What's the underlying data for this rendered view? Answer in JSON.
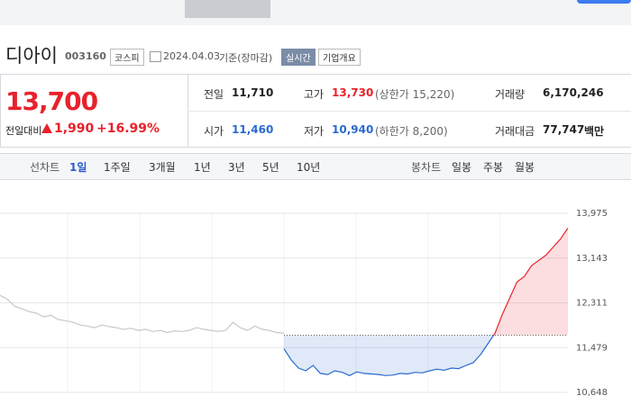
{
  "stock": {
    "name": "디아이",
    "code": "003160",
    "market": "코스피",
    "date": "2024.04.03",
    "basis": "기준(장마감)",
    "realtime": "실시간",
    "overview": "기업개요"
  },
  "price": {
    "current": "13,700",
    "change_label": "전일대비",
    "change": "1,990",
    "rate": "+16.99%"
  },
  "summary": {
    "rows": [
      [
        {
          "label": "전일",
          "value": "11,710"
        },
        {
          "label": "고가",
          "value": "13,730",
          "note": "(상한가 15,220)"
        },
        {
          "label": "거래량",
          "value": "6,170,246"
        }
      ],
      [
        {
          "label": "시가",
          "value": "11,460"
        },
        {
          "label": "저가",
          "value": "10,940",
          "note": "(하한가 8,200)"
        },
        {
          "label": "거래대금",
          "value": "77,747",
          "unit": "백만"
        }
      ]
    ]
  },
  "tabs": {
    "line_label": "선차트",
    "line_tabs": [
      "1일",
      "1주일",
      "3개월",
      "1년",
      "3년",
      "5년",
      "10년"
    ],
    "candle_label": "봉차트",
    "candle_tabs": [
      "일봉",
      "주봉",
      "월봉"
    ]
  },
  "chart_data": {
    "type": "line",
    "series": [
      {
        "color": "#c8c8c8",
        "values": [
          12450,
          12380,
          12250,
          12200,
          12150,
          12120,
          12050,
          12080,
          12000,
          11980,
          11950,
          11900,
          11880,
          11850,
          11900,
          11870,
          11850,
          11820,
          11840,
          11800,
          11820,
          11780,
          11800,
          11760,
          11790,
          11780,
          11800,
          11850,
          11820,
          11800,
          11780,
          11800,
          11950,
          11850,
          11800,
          11880,
          11820,
          11800,
          11760,
          11750
        ]
      },
      {
        "color": "#e8222c",
        "color_below": "#2a6ad0",
        "values": [
          11460,
          11250,
          11100,
          11050,
          11150,
          11000,
          10980,
          11050,
          11020,
          10960,
          11030,
          11000,
          10990,
          10980,
          10960,
          10970,
          11000,
          10990,
          11020,
          11010,
          11050,
          11080,
          11060,
          11100,
          11090,
          11150,
          11200,
          11350,
          11550,
          11750,
          12100,
          12400,
          12700,
          12800,
          13000,
          13100,
          13200,
          13350,
          13500,
          13700
        ]
      }
    ],
    "reference_line": 11710,
    "ylim": [
      10648,
      13975
    ],
    "yticks": [
      {
        "value": 13975,
        "label": "13,975"
      },
      {
        "value": 13143,
        "label": "13,143"
      },
      {
        "value": 12311,
        "label": "12,311"
      },
      {
        "value": 11479,
        "label": "11,479"
      },
      {
        "value": 10648,
        "label": "10,648"
      }
    ],
    "grid": true
  }
}
